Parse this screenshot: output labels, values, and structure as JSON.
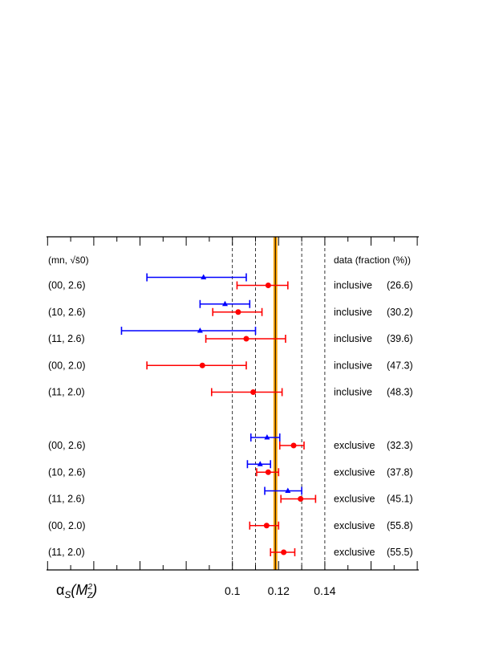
{
  "chart_data": {
    "type": "scatter",
    "orientation": "horizontal error bars",
    "xlabel": "αS(M2Z)",
    "xlim": [
      0.0,
      0.16
    ],
    "x_ticks": [
      0.1,
      0.12,
      0.14
    ],
    "x_tick_labels": [
      "0.1",
      "0.12",
      "0.14"
    ],
    "dashed_reference_lines": [
      0.1,
      0.11,
      0.13,
      0.14
    ],
    "reference_band": {
      "center": 0.1186,
      "low": 0.1181,
      "high": 0.1191,
      "color": "#ffa500",
      "line_color": "#000000"
    },
    "header_left": "(mn, √s̄0)",
    "header_right": "data  (fraction (%))",
    "rows": [
      {
        "config": "(00, 2.6)",
        "data": "inclusive",
        "fraction": "(26.6)",
        "blue": {
          "value": 0.0875,
          "low": 0.063,
          "high": 0.106
        },
        "red": {
          "value": 0.1155,
          "low": 0.102,
          "high": 0.124
        }
      },
      {
        "config": "(10, 2.6)",
        "data": "inclusive",
        "fraction": "(30.2)",
        "blue": {
          "value": 0.0968,
          "low": 0.086,
          "high": 0.1075
        },
        "red": {
          "value": 0.1025,
          "low": 0.0915,
          "high": 0.1128
        }
      },
      {
        "config": "(11, 2.6)",
        "data": "inclusive",
        "fraction": "(39.6)",
        "blue": {
          "value": 0.086,
          "low": 0.052,
          "high": 0.11
        },
        "red": {
          "value": 0.106,
          "low": 0.0885,
          "high": 0.123
        }
      },
      {
        "config": "(00, 2.0)",
        "data": "inclusive",
        "fraction": "(47.3)",
        "blue": null,
        "red": {
          "value": 0.087,
          "low": 0.063,
          "high": 0.106
        }
      },
      {
        "config": "(11, 2.0)",
        "data": "inclusive",
        "fraction": "(48.3)",
        "blue": null,
        "red": {
          "value": 0.109,
          "low": 0.091,
          "high": 0.1215
        }
      },
      {
        "config": "(00, 2.6)",
        "data": "exclusive",
        "fraction": "(32.3)",
        "blue": {
          "value": 0.115,
          "low": 0.108,
          "high": 0.1205
        },
        "red": {
          "value": 0.1265,
          "low": 0.1205,
          "high": 0.131
        }
      },
      {
        "config": "(10, 2.6)",
        "data": "exclusive",
        "fraction": "(37.8)",
        "blue": {
          "value": 0.112,
          "low": 0.1065,
          "high": 0.1165
        },
        "red": {
          "value": 0.1155,
          "low": 0.1105,
          "high": 0.12
        }
      },
      {
        "config": "(11, 2.6)",
        "data": "exclusive",
        "fraction": "(45.1)",
        "blue": {
          "value": 0.124,
          "low": 0.114,
          "high": 0.13
        },
        "red": {
          "value": 0.1295,
          "low": 0.121,
          "high": 0.136
        }
      },
      {
        "config": "(00, 2.0)",
        "data": "exclusive",
        "fraction": "(55.8)",
        "blue": null,
        "red": {
          "value": 0.1148,
          "low": 0.1075,
          "high": 0.12
        }
      },
      {
        "config": "(11, 2.0)",
        "data": "exclusive",
        "fraction": "(55.5)",
        "blue": null,
        "red": {
          "value": 0.1222,
          "low": 0.1165,
          "high": 0.127
        }
      }
    ],
    "colors": {
      "blue": "#0000ff",
      "red": "#ff0000",
      "frame": "#000000"
    },
    "grid": false
  }
}
